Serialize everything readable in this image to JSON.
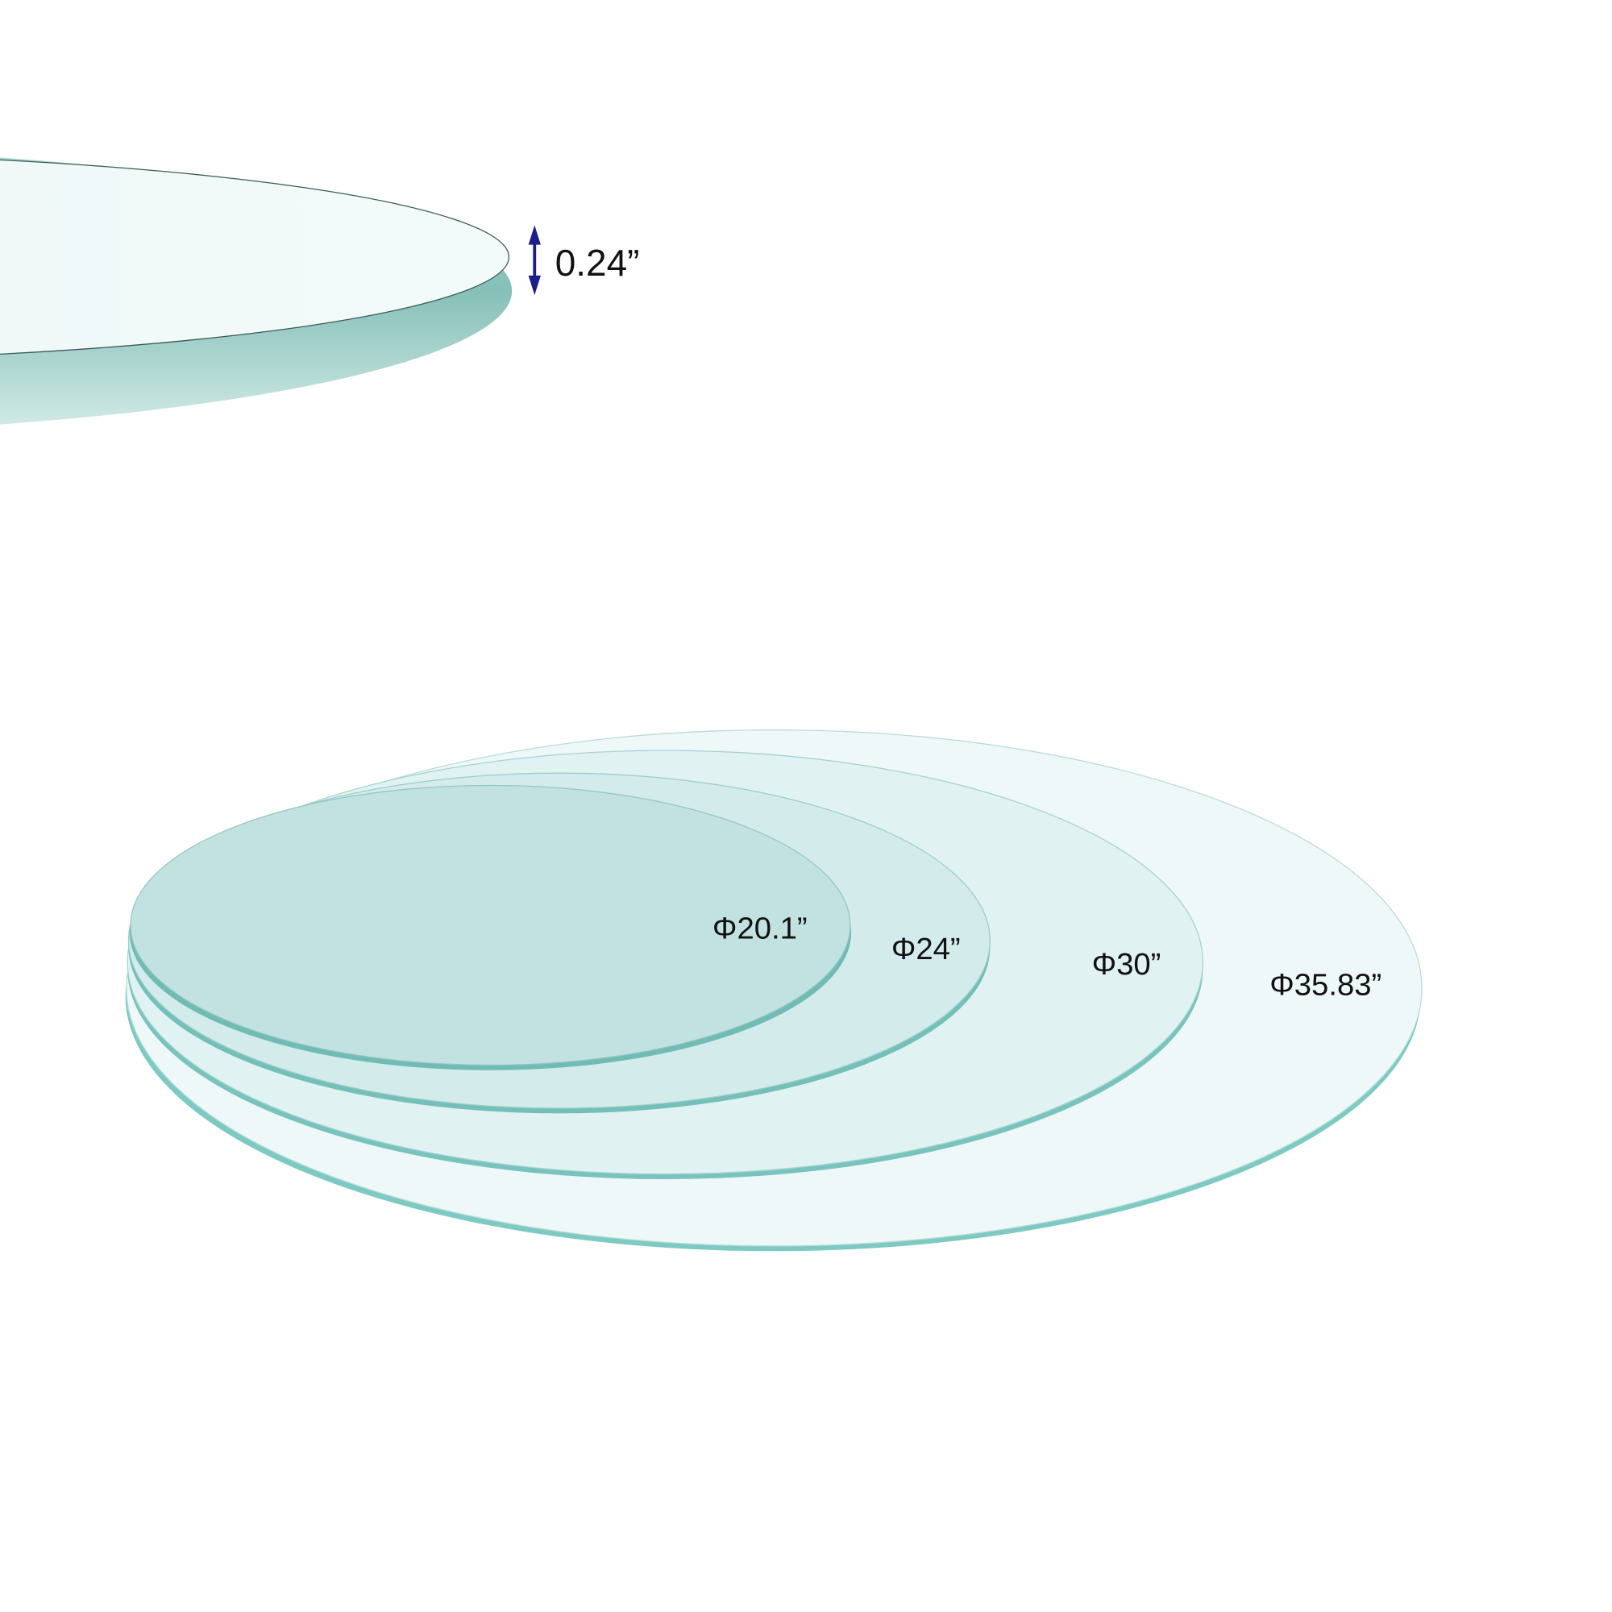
{
  "thickness": {
    "label": "0.24”",
    "arrow_color": "#1c1c8a",
    "icon": "double-arrow-vertical-icon"
  },
  "discs": [
    {
      "label": "Φ35.83”",
      "face_color": "#eef8f8",
      "edge_color": "#7ccac2"
    },
    {
      "label": "Φ30”",
      "face_color": "#e0f2f2",
      "edge_color": "#78c4bd"
    },
    {
      "label": "Φ24”",
      "face_color": "#d3ebeb",
      "edge_color": "#74c0b9"
    },
    {
      "label": "Φ20.1”",
      "face_color": "#c2e2e2",
      "edge_color": "#70bcb4"
    }
  ],
  "background": "#ffffff"
}
